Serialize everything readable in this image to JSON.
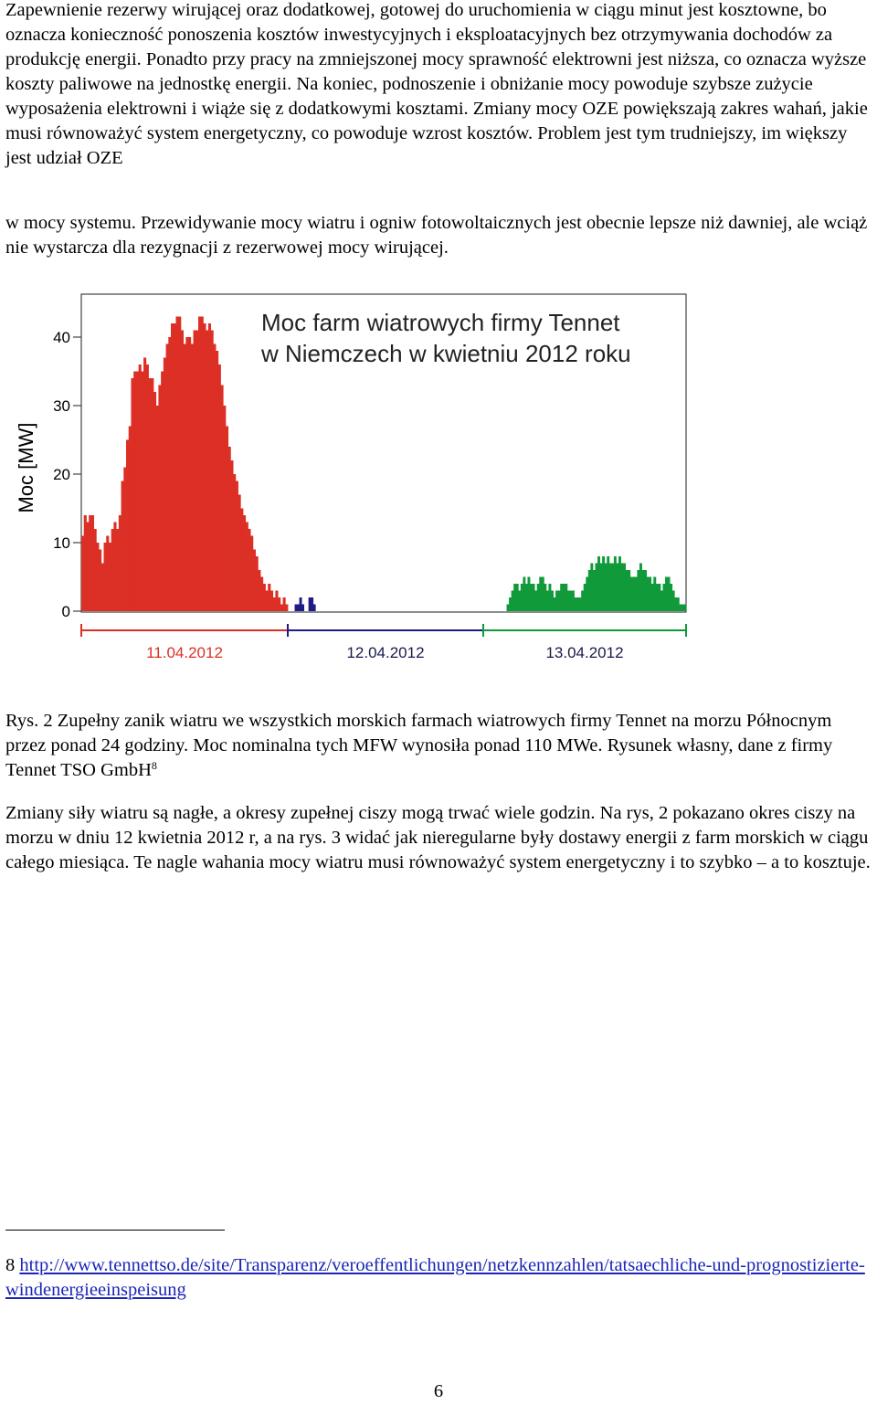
{
  "paragraphs": {
    "p1": "Zapewnienie rezerwy wirującej oraz dodatkowej, gotowej do uruchomienia w ciągu minut jest kosztowne, bo oznacza konieczność ponoszenia kosztów inwestycyjnych i eksploatacyjnych bez otrzymywania dochodów za produkcję energii. Ponadto przy pracy na zmniejszonej mocy sprawność elektrowni jest niższa, co oznacza wyższe koszty paliwowe na jednostkę energii. Na koniec, podnoszenie i obniżanie mocy powoduje szybsze zużycie wyposażenia elektrowni i wiąże się z dodatkowymi kosztami. Zmiany mocy OZE powiększają zakres wahań, jakie musi równoważyć system energetyczny, co powoduje wzrost kosztów. Problem jest tym trudniejszy, im większy jest udział OZE",
    "p2": "w mocy systemu. Przewidywanie mocy wiatru i ogniw fotowoltaicznych jest obecnie lepsze niż dawniej, ale wciąż nie wystarcza dla rezygnacji z rezerwowej mocy wirującej.",
    "caption": "Rys. 2 Zupełny zanik wiatru we wszystkich morskich farmach wiatrowych firmy Tennet  na morzu Północnym przez ponad 24 godziny. Moc nominalna tych MFW wynosiła ponad 110 MWe. Rysunek własny, dane z firmy Tennet TSO GmbH",
    "caption_ref": "8",
    "p3": "Zmiany siły wiatru są nagłe, a okresy zupełnej ciszy mogą trwać wiele godzin. Na rys, 2 pokazano okres ciszy na morzu w dniu 12 kwietnia 2012 r, a na rys. 3 widać jak nieregularne były dostawy energii z farm morskich w ciągu całego miesiąca. Te nagle wahania mocy wiatru musi równoważyć system energetyczny i to szybko  – a to kosztuje."
  },
  "footnote": {
    "number": "8",
    "link": "http://www.tennettso.de/site/Transparenz/veroeffentlichungen/netzkennzahlen/tatsaechliche-und-prognostizierte-windenergieeinspeisung"
  },
  "page_number": "6",
  "chart_data": {
    "type": "bar",
    "title_lines": [
      "Moc farm wiatrowych firmy Tennet",
      "w Niemczech w kwietniu 2012 roku"
    ],
    "ylabel": "Moc [MW]",
    "ylim": [
      0,
      46
    ],
    "yticks": [
      0,
      10,
      20,
      30,
      40
    ],
    "day_labels": [
      "11.04.2012",
      "12.04.2012",
      "13.04.2012"
    ],
    "colors": {
      "day1": "#dc2f25",
      "day2": "#1f1b86",
      "day3": "#119a3a"
    },
    "series": [
      {
        "day": "11.04.2012",
        "values": [
          11,
          14,
          13,
          14,
          14,
          12,
          10,
          9,
          7,
          10,
          11,
          10,
          12,
          13,
          12,
          14,
          19,
          21,
          25,
          27,
          34,
          35,
          35,
          36,
          35,
          37,
          36,
          34,
          34,
          32,
          30,
          33,
          35,
          37,
          39,
          40,
          42,
          42,
          43,
          43,
          41,
          39,
          40,
          40,
          39,
          41,
          41,
          43,
          43,
          42,
          41,
          42,
          41,
          39,
          38,
          36,
          33,
          30,
          27,
          24,
          22,
          20,
          19,
          17,
          15,
          14,
          13,
          12,
          11,
          9,
          8,
          6,
          5,
          4,
          3,
          4,
          3,
          2,
          3,
          2,
          1,
          2,
          1
        ]
      },
      {
        "day": "12.04.2012",
        "values": [
          0,
          0,
          0,
          1,
          1,
          2,
          1,
          0,
          0,
          2,
          2,
          1,
          0,
          0,
          0,
          0,
          0,
          0,
          0,
          0,
          0,
          0,
          0,
          0,
          0,
          0,
          0,
          0,
          0,
          0,
          0,
          0,
          0,
          0,
          0,
          0,
          0,
          0,
          0,
          0,
          0,
          0,
          0,
          0,
          0,
          0,
          0,
          0,
          0,
          0,
          0,
          0,
          0,
          0,
          0,
          0,
          0,
          0,
          0,
          0,
          0,
          0,
          0,
          0,
          0,
          0,
          0,
          0,
          0,
          0,
          0,
          0,
          0,
          0,
          0,
          0,
          0,
          0,
          0,
          0,
          0,
          0,
          0,
          0,
          0
        ]
      },
      {
        "day": "13.04.2012",
        "values": [
          0,
          0,
          0,
          0,
          0,
          0,
          0,
          0,
          0,
          0,
          1,
          2,
          3,
          4,
          4,
          3,
          4,
          5,
          4,
          5,
          4,
          4,
          3,
          4,
          5,
          5,
          4,
          3,
          4,
          3,
          2,
          3,
          3,
          4,
          4,
          4,
          3,
          3,
          3,
          2,
          2,
          2,
          3,
          4,
          5,
          6,
          7,
          6,
          7,
          8,
          7,
          8,
          7,
          8,
          7,
          7,
          8,
          7,
          8,
          7,
          7,
          6,
          6,
          5,
          5,
          5,
          6,
          7,
          6,
          6,
          5,
          5,
          4,
          5,
          4,
          4,
          3,
          4,
          5,
          5,
          4,
          3,
          2,
          2,
          1,
          1,
          1
        ]
      }
    ]
  }
}
